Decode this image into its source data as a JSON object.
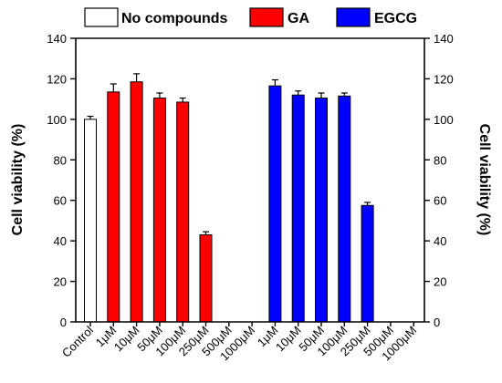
{
  "chart_data": {
    "type": "bar",
    "ylabel_left": "Cell viability (%)",
    "ylabel_right": "Cell viability (%)",
    "ylim": [
      0,
      140
    ],
    "yticks": [
      0,
      20,
      40,
      60,
      80,
      100,
      120,
      140
    ],
    "categories": [
      "Control",
      "1μM",
      "10μM",
      "50μM",
      "100μM",
      "250μM",
      "500μM",
      "1000μM",
      "1μM",
      "10μM",
      "50μM",
      "100μM",
      "250μM",
      "500μM",
      "1000μM"
    ],
    "series": [
      {
        "name": "No compounds",
        "color": "#ffffff",
        "values": [
          100,
          null,
          null,
          null,
          null,
          null,
          null,
          null,
          null,
          null,
          null,
          null,
          null,
          null,
          null
        ],
        "errors": [
          1.5,
          null,
          null,
          null,
          null,
          null,
          null,
          null,
          null,
          null,
          null,
          null,
          null,
          null,
          null
        ]
      },
      {
        "name": "GA",
        "color": "#ff0000",
        "values": [
          null,
          113.5,
          118.5,
          110.5,
          108.5,
          43,
          0,
          0,
          null,
          null,
          null,
          null,
          null,
          null,
          null
        ],
        "errors": [
          null,
          4,
          4,
          2.5,
          2,
          1.5,
          0,
          0,
          null,
          null,
          null,
          null,
          null,
          null,
          null
        ]
      },
      {
        "name": "EGCG",
        "color": "#0000ff",
        "values": [
          null,
          null,
          null,
          null,
          null,
          null,
          null,
          null,
          116.5,
          112,
          110.5,
          111.5,
          57.5,
          0,
          0
        ],
        "errors": [
          null,
          null,
          null,
          null,
          null,
          null,
          null,
          null,
          3,
          2,
          2.5,
          1.5,
          1.5,
          0,
          0
        ]
      }
    ],
    "legend_position": "top",
    "grid": false
  }
}
